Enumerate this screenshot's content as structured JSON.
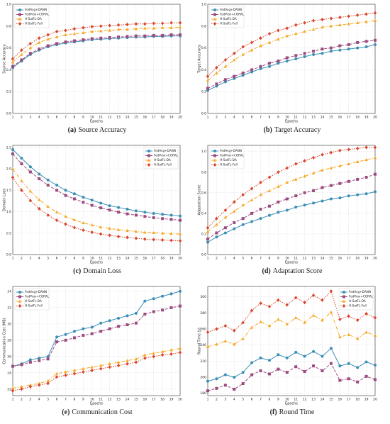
{
  "chart_data": [
    {
      "type": "line",
      "label": "(a)",
      "caption": "Source Accuracy",
      "xlabel": "Epochs",
      "ylabel": "Source Accuracy",
      "x": [
        1,
        2,
        3,
        4,
        5,
        6,
        7,
        8,
        9,
        10,
        11,
        12,
        13,
        14,
        15,
        16,
        17,
        18,
        19,
        20
      ],
      "xlim": [
        1,
        20
      ],
      "xticks": [
        1,
        2,
        3,
        4,
        5,
        6,
        7,
        8,
        9,
        10,
        11,
        12,
        13,
        14,
        15,
        16,
        17,
        18,
        19,
        20
      ],
      "ylim": [
        0,
        1
      ],
      "yticks": [
        {
          "value": 0,
          "label": "0.0"
        },
        0.2,
        0.4,
        0.6,
        0.8,
        {
          "value": 1,
          "label": "1.0"
        }
      ],
      "grid": true,
      "legend": "upper-left",
      "series": [
        {
          "name": "FedAvg+DANN",
          "color": "#3c8fb5",
          "values": [
            0.42,
            0.48,
            0.54,
            0.58,
            0.61,
            0.63,
            0.645,
            0.655,
            0.665,
            0.675,
            0.68,
            0.685,
            0.69,
            0.695,
            0.7,
            0.7,
            0.705,
            0.705,
            0.71,
            0.71
          ]
        },
        {
          "name": "FedProx+CORAL",
          "color": "#9c4a7f",
          "values": [
            0.43,
            0.49,
            0.55,
            0.59,
            0.62,
            0.64,
            0.655,
            0.665,
            0.675,
            0.685,
            0.69,
            0.695,
            0.7,
            0.705,
            0.71,
            0.71,
            0.715,
            0.715,
            0.72,
            0.72
          ]
        },
        {
          "name": "H-SatFL-DA",
          "color": "#f5a623",
          "values": [
            0.47,
            0.54,
            0.6,
            0.65,
            0.68,
            0.7,
            0.72,
            0.73,
            0.74,
            0.75,
            0.755,
            0.76,
            0.77,
            0.77,
            0.775,
            0.78,
            0.78,
            0.785,
            0.785,
            0.79
          ]
        },
        {
          "name": "H-SatFL-Full",
          "color": "#d8452c",
          "values": [
            0.5,
            0.58,
            0.64,
            0.69,
            0.72,
            0.75,
            0.76,
            0.775,
            0.785,
            0.795,
            0.8,
            0.805,
            0.81,
            0.815,
            0.82,
            0.82,
            0.825,
            0.825,
            0.83,
            0.83
          ]
        }
      ]
    },
    {
      "type": "line",
      "label": "(b)",
      "caption": "Target Accuracy",
      "xlabel": "Epochs",
      "ylabel": "Target Accuracy",
      "x": [
        1,
        2,
        3,
        4,
        5,
        6,
        7,
        8,
        9,
        10,
        11,
        12,
        13,
        14,
        15,
        16,
        17,
        18,
        19,
        20
      ],
      "xlim": [
        1,
        20
      ],
      "xticks": [
        1,
        2,
        3,
        4,
        5,
        6,
        7,
        8,
        9,
        10,
        11,
        12,
        13,
        14,
        15,
        16,
        17,
        18,
        19,
        20
      ],
      "ylim": [
        0,
        1
      ],
      "yticks": [
        {
          "value": 0,
          "label": "0.0"
        },
        0.2,
        0.4,
        0.6,
        0.8,
        {
          "value": 1,
          "label": "1.0"
        }
      ],
      "grid": true,
      "legend": "upper-left",
      "series": [
        {
          "name": "FedAvg+DANN",
          "color": "#3c8fb5",
          "values": [
            0.21,
            0.25,
            0.29,
            0.32,
            0.35,
            0.38,
            0.41,
            0.43,
            0.46,
            0.48,
            0.5,
            0.52,
            0.54,
            0.55,
            0.57,
            0.58,
            0.59,
            0.6,
            0.61,
            0.63
          ]
        },
        {
          "name": "FedProx+CORAL",
          "color": "#9c4a7f",
          "values": [
            0.23,
            0.27,
            0.31,
            0.34,
            0.37,
            0.4,
            0.43,
            0.46,
            0.48,
            0.51,
            0.53,
            0.55,
            0.57,
            0.59,
            0.6,
            0.62,
            0.63,
            0.65,
            0.66,
            0.67
          ]
        },
        {
          "name": "H-SatFL-DA",
          "color": "#f5a623",
          "values": [
            0.3,
            0.37,
            0.43,
            0.49,
            0.54,
            0.58,
            0.62,
            0.65,
            0.68,
            0.71,
            0.73,
            0.75,
            0.77,
            0.79,
            0.8,
            0.81,
            0.82,
            0.83,
            0.84,
            0.85
          ]
        },
        {
          "name": "H-SatFL-Full",
          "color": "#d8452c",
          "values": [
            0.34,
            0.42,
            0.49,
            0.55,
            0.61,
            0.65,
            0.69,
            0.73,
            0.76,
            0.78,
            0.81,
            0.83,
            0.85,
            0.86,
            0.87,
            0.88,
            0.89,
            0.9,
            0.91,
            0.92
          ]
        }
      ]
    },
    {
      "type": "line",
      "label": "(c)",
      "caption": "Domain Loss",
      "xlabel": "Epochs",
      "ylabel": "Domain Loss",
      "x": [
        1,
        2,
        3,
        4,
        5,
        6,
        7,
        8,
        9,
        10,
        11,
        12,
        13,
        14,
        15,
        16,
        17,
        18,
        19,
        20
      ],
      "xlim": [
        1,
        20
      ],
      "xticks": [
        1,
        2,
        3,
        4,
        5,
        6,
        7,
        8,
        9,
        10,
        11,
        12,
        13,
        14,
        15,
        16,
        17,
        18,
        19,
        20
      ],
      "ylim": [
        0,
        2.55
      ],
      "yticks": [
        {
          "value": 0,
          "label": "0.0"
        },
        0.5,
        {
          "value": 1,
          "label": "1.0"
        },
        1.5,
        {
          "value": 2,
          "label": "2.0"
        },
        2.5
      ],
      "grid": true,
      "legend": "upper-right",
      "series": [
        {
          "name": "FedAvg+DANN",
          "color": "#3c8fb5",
          "values": [
            2.45,
            2.25,
            2.05,
            1.88,
            1.74,
            1.62,
            1.5,
            1.42,
            1.34,
            1.27,
            1.2,
            1.14,
            1.1,
            1.06,
            1.02,
            0.99,
            0.96,
            0.94,
            0.92,
            0.9
          ]
        },
        {
          "name": "FedProx+CORAL",
          "color": "#9c4a7f",
          "values": [
            2.35,
            2.12,
            1.93,
            1.77,
            1.62,
            1.5,
            1.38,
            1.3,
            1.22,
            1.15,
            1.09,
            1.04,
            0.99,
            0.95,
            0.92,
            0.89,
            0.86,
            0.84,
            0.82,
            0.8
          ]
        },
        {
          "name": "H-SatFL-DA",
          "color": "#f5a623",
          "values": [
            2.0,
            1.72,
            1.48,
            1.28,
            1.12,
            0.99,
            0.89,
            0.81,
            0.74,
            0.69,
            0.64,
            0.61,
            0.58,
            0.56,
            0.54,
            0.52,
            0.51,
            0.5,
            0.49,
            0.48
          ]
        },
        {
          "name": "H-SatFL-Full",
          "color": "#d8452c",
          "values": [
            1.8,
            1.5,
            1.26,
            1.07,
            0.92,
            0.8,
            0.71,
            0.63,
            0.57,
            0.52,
            0.48,
            0.45,
            0.42,
            0.4,
            0.38,
            0.36,
            0.35,
            0.34,
            0.33,
            0.32
          ]
        }
      ]
    },
    {
      "type": "line",
      "label": "(d)",
      "caption": "Adaptation Score",
      "xlabel": "Epochs",
      "ylabel": "Adaptation Score",
      "x": [
        1,
        2,
        3,
        4,
        5,
        6,
        7,
        8,
        9,
        10,
        11,
        12,
        13,
        14,
        15,
        16,
        17,
        18,
        19,
        20
      ],
      "xlim": [
        1,
        20
      ],
      "xticks": [
        1,
        2,
        3,
        4,
        5,
        6,
        7,
        8,
        9,
        10,
        11,
        12,
        13,
        14,
        15,
        16,
        17,
        18,
        19,
        20
      ],
      "ylim": [
        0,
        1.06
      ],
      "yticks": [
        {
          "value": 0,
          "label": "0.0"
        },
        0.2,
        0.4,
        0.6,
        0.8,
        {
          "value": 1,
          "label": "1.0"
        }
      ],
      "grid": true,
      "legend": "upper-left",
      "series": [
        {
          "name": "FedAvg+DANN",
          "color": "#3c8fb5",
          "values": [
            0.12,
            0.17,
            0.21,
            0.25,
            0.29,
            0.32,
            0.35,
            0.38,
            0.41,
            0.43,
            0.46,
            0.48,
            0.5,
            0.52,
            0.54,
            0.55,
            0.57,
            0.58,
            0.59,
            0.61
          ]
        },
        {
          "name": "FedProx+CORAL",
          "color": "#9c4a7f",
          "values": [
            0.15,
            0.21,
            0.26,
            0.31,
            0.35,
            0.4,
            0.44,
            0.47,
            0.51,
            0.54,
            0.57,
            0.6,
            0.62,
            0.65,
            0.67,
            0.69,
            0.71,
            0.73,
            0.75,
            0.78
          ]
        },
        {
          "name": "H-SatFL-DA",
          "color": "#f5a623",
          "values": [
            0.22,
            0.29,
            0.36,
            0.42,
            0.48,
            0.53,
            0.58,
            0.62,
            0.66,
            0.7,
            0.73,
            0.76,
            0.79,
            0.82,
            0.84,
            0.86,
            0.88,
            0.9,
            0.92,
            0.94
          ]
        },
        {
          "name": "H-SatFL-Full",
          "color": "#d8452c",
          "values": [
            0.26,
            0.35,
            0.43,
            0.51,
            0.58,
            0.64,
            0.7,
            0.75,
            0.8,
            0.84,
            0.88,
            0.91,
            0.94,
            0.97,
            0.99,
            1.01,
            1.02,
            1.03,
            1.04,
            1.04
          ]
        }
      ]
    },
    {
      "type": "line",
      "label": "(e)",
      "caption": "Communication Cost",
      "xlabel": "Epochs",
      "ylabel": "Communication Cost (MB)",
      "x": [
        1,
        2,
        3,
        4,
        5,
        6,
        7,
        8,
        9,
        10,
        11,
        12,
        13,
        14,
        15,
        16,
        17,
        18,
        19,
        20
      ],
      "xlim": [
        1,
        20
      ],
      "xticks": [
        1,
        2,
        3,
        4,
        5,
        6,
        7,
        8,
        9,
        10,
        11,
        12,
        13,
        14,
        15,
        16,
        17,
        18,
        19,
        20
      ],
      "ylim": [
        21.2,
        34.6
      ],
      "yticks": [
        22,
        24,
        26,
        28,
        30,
        32,
        34
      ],
      "grid": true,
      "legend": "upper-left",
      "series": [
        {
          "name": "FedAvg+DANN",
          "color": "#3c8fb5",
          "values": [
            24.8,
            25.1,
            25.6,
            25.8,
            26.0,
            28.4,
            28.7,
            29.1,
            29.4,
            29.6,
            30.1,
            30.4,
            30.7,
            31.0,
            31.3,
            32.8,
            33.1,
            33.4,
            33.7,
            34.0
          ]
        },
        {
          "name": "FedProx+CORAL",
          "color": "#9c4a7f",
          "values": [
            24.8,
            25.0,
            25.3,
            25.5,
            25.7,
            27.8,
            28.0,
            28.3,
            28.6,
            28.8,
            29.1,
            29.4,
            29.7,
            29.9,
            30.1,
            31.2,
            31.5,
            31.7,
            32.0,
            32.2
          ]
        },
        {
          "name": "H-SatFL-DA",
          "color": "#f5a623",
          "values": [
            22.1,
            22.3,
            22.5,
            22.7,
            23.0,
            23.9,
            24.1,
            24.3,
            24.5,
            24.7,
            24.9,
            25.1,
            25.3,
            25.5,
            25.7,
            26.2,
            26.4,
            26.6,
            26.8,
            27.0
          ]
        },
        {
          "name": "H-SatFL-Full",
          "color": "#d8452c",
          "values": [
            21.8,
            22.0,
            22.3,
            22.5,
            22.7,
            23.5,
            23.7,
            23.9,
            24.1,
            24.3,
            24.5,
            24.7,
            24.9,
            25.1,
            25.3,
            25.8,
            26.0,
            26.2,
            26.3,
            26.5
          ]
        }
      ]
    },
    {
      "type": "line",
      "label": "(f)",
      "caption": "Round Time",
      "xlabel": "Epochs",
      "ylabel": "Round Time (s)",
      "x": [
        1,
        2,
        3,
        4,
        5,
        6,
        7,
        8,
        9,
        10,
        11,
        12,
        13,
        14,
        15,
        16,
        17,
        18,
        19,
        20
      ],
      "xlim": [
        1,
        20
      ],
      "xticks": [
        1,
        2,
        3,
        4,
        5,
        6,
        7,
        8,
        9,
        10,
        11,
        12,
        13,
        14,
        15,
        16,
        17,
        18,
        19,
        20
      ],
      "ylim": [
        177,
        313
      ],
      "yticks": [
        180,
        200,
        220,
        240,
        260,
        280,
        300
      ],
      "grid": true,
      "legend": "upper-right",
      "series": [
        {
          "name": "FedAvg+DANN",
          "color": "#3c8fb5",
          "values": [
            195,
            198,
            203,
            200,
            206,
            218,
            224,
            221,
            228,
            224,
            231,
            226,
            232,
            226,
            236,
            214,
            217,
            212,
            219,
            215
          ]
        },
        {
          "name": "FedProx+CORAL",
          "color": "#9c4a7f",
          "values": [
            183,
            186,
            190,
            185,
            192,
            203,
            208,
            204,
            210,
            206,
            213,
            207,
            214,
            208,
            217,
            196,
            198,
            194,
            201,
            197
          ]
        },
        {
          "name": "H-SatFL-DA",
          "color": "#f5a623",
          "values": [
            238,
            241,
            245,
            241,
            248,
            262,
            269,
            264,
            272,
            266,
            274,
            268,
            277,
            271,
            281,
            250,
            253,
            248,
            256,
            252
          ]
        },
        {
          "name": "H-SatFL-Full",
          "color": "#d8452c",
          "values": [
            256,
            260,
            264,
            258,
            268,
            283,
            292,
            288,
            296,
            290,
            299,
            293,
            302,
            296,
            307,
            272,
            276,
            271,
            279,
            274
          ]
        }
      ]
    }
  ]
}
